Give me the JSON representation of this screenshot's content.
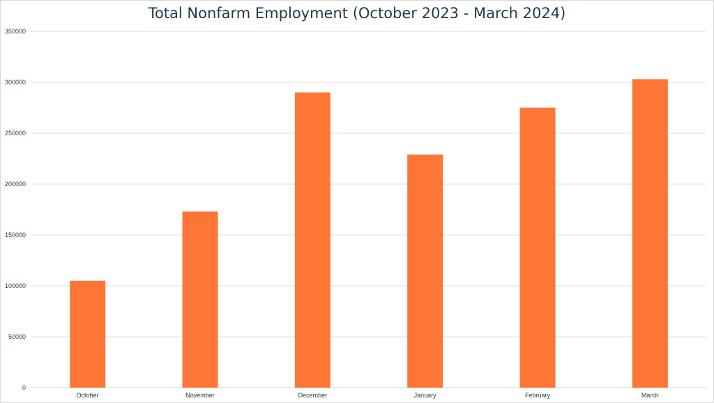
{
  "chart_data": {
    "type": "bar",
    "title": "Total Nonfarm Employment (October 2023 - March 2024)",
    "xlabel": "",
    "ylabel": "",
    "categories": [
      "October",
      "November",
      "December",
      "January",
      "February",
      "March"
    ],
    "values": [
      105000,
      173000,
      290000,
      229000,
      275000,
      303000
    ],
    "ylim": [
      0,
      350000
    ],
    "yticks": [
      "0",
      "50000",
      "100000",
      "150000",
      "200000",
      "250000",
      "300000",
      "350000"
    ],
    "grid": true,
    "legend": "none",
    "colors": {
      "bar": "#fd7636",
      "grid": "#dcdcdc",
      "axis_text": "#1d3b47",
      "title": "#1d3b47"
    }
  }
}
